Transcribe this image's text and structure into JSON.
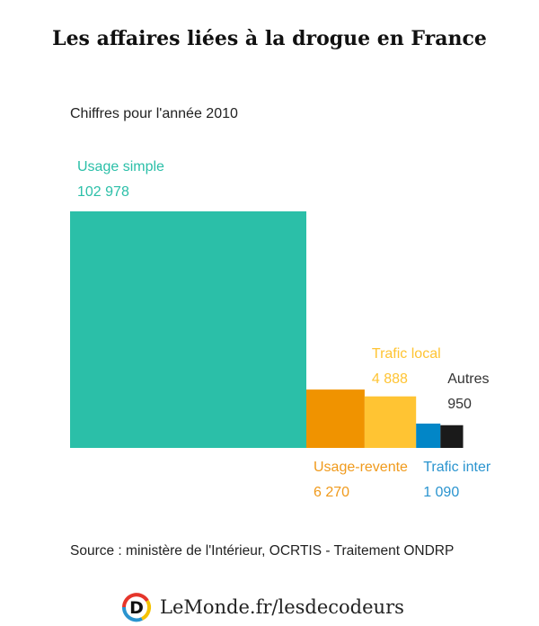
{
  "title": "Les affaires liées à la drogue en France",
  "subtitle": "Chiffres pour l'année 2010",
  "source": "Source : ministère de l'Intérieur, OCRTIS - Traitement ONDRP",
  "logo_text": "LeMonde.fr/lesdecodeurs",
  "chart_data": {
    "type": "area-squares",
    "title": "Les affaires liées à la drogue en France",
    "subtitle": "Chiffres pour l'année 2010",
    "categories": [
      "Usage simple",
      "Usage-revente",
      "Trafic local",
      "Trafic inter",
      "Autres"
    ],
    "values": [
      102978,
      6270,
      4888,
      1090,
      950
    ],
    "value_labels": [
      "102 978",
      "6 270",
      "4 888",
      "1 090",
      "950"
    ],
    "colors": [
      "#2bbfa8",
      "#f09300",
      "#ffc433",
      "#0286c7",
      "#1a1a1a"
    ],
    "label_colors": [
      "#2bbfa8",
      "#f09a1c",
      "#ffc433",
      "#2a94cf",
      "#333333"
    ]
  }
}
